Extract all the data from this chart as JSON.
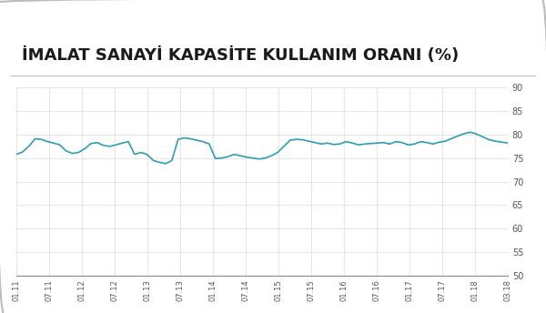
{
  "title": "İMALAT SANAYİ KAPASİTE KULLANIM ORANI (%)",
  "title_fontsize": 13,
  "line_color": "#2b9db8",
  "background_color": "#ffffff",
  "plot_bg_color": "#ffffff",
  "ylim": [
    50,
    90
  ],
  "yticks": [
    50,
    55,
    60,
    65,
    70,
    75,
    80,
    85,
    90
  ],
  "x_labels": [
    "01.11",
    "07.11",
    "01.12",
    "07.12",
    "01.13",
    "07.13",
    "01.14",
    "07.14",
    "01.15",
    "07.15",
    "01.16",
    "07.16",
    "01.17",
    "07.17",
    "01.18",
    "03.18"
  ],
  "values": [
    75.8,
    76.3,
    77.5,
    79.1,
    79.0,
    78.5,
    78.2,
    77.8,
    76.5,
    76.0,
    76.2,
    77.0,
    78.1,
    78.3,
    77.7,
    77.5,
    77.8,
    78.2,
    78.5,
    75.8,
    76.2,
    75.8,
    74.5,
    74.1,
    73.8,
    74.5,
    79.0,
    79.3,
    79.1,
    78.8,
    78.5,
    78.0,
    74.9,
    75.0,
    75.3,
    75.8,
    75.5,
    75.2,
    75.0,
    74.8,
    75.0,
    75.5,
    76.2,
    77.5,
    78.8,
    79.0,
    78.9,
    78.6,
    78.3,
    78.0,
    78.2,
    77.9,
    78.0,
    78.5,
    78.2,
    77.8,
    78.0,
    78.1,
    78.2,
    78.3,
    78.0,
    78.5,
    78.3,
    77.8,
    78.0,
    78.5,
    78.3,
    78.0,
    78.4,
    78.6,
    79.2,
    79.7,
    80.2,
    80.5,
    80.1,
    79.5,
    78.9,
    78.6,
    78.4,
    78.2
  ],
  "border_color": "#bbbbbb",
  "grid_color": "#e0e0e0",
  "tick_color": "#555555",
  "title_color": "#1a1a1a",
  "separator_color": "#c0c0c0"
}
